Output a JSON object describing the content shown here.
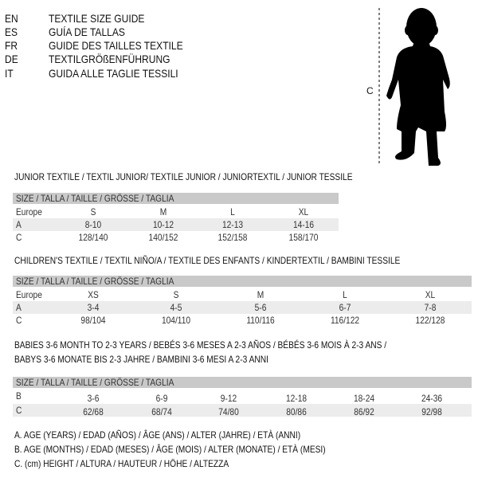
{
  "languages": [
    {
      "code": "EN",
      "text": "TEXTILE SIZE GUIDE"
    },
    {
      "code": "ES",
      "text": "GUÍA DE TALLAS"
    },
    {
      "code": "FR",
      "text": "GUIDE DES TAILLES TEXTILE"
    },
    {
      "code": "DE",
      "text": "TEXTILGRÖßENFÜHRUNG"
    },
    {
      "code": "IT",
      "text": "GUIDA ALLE TAGLIE TESSILI"
    }
  ],
  "figure": {
    "height_label": "C",
    "icon": "child-silhouette"
  },
  "junior": {
    "title": "JUNIOR TEXTILE / TEXTIL JUNIOR/ TEXTILE JUNIOR / JUNIORTEXTIL / JUNIOR TESSILE",
    "header": "SIZE / TALLA / TAILLE / GRÖSSE / TAGLIA",
    "rows": [
      {
        "label": "Europe",
        "cells": [
          "S",
          "M",
          "L",
          "XL"
        ]
      },
      {
        "label": "A",
        "cells": [
          "8-10",
          "10-12",
          "12-13",
          "14-16"
        ]
      },
      {
        "label": "C",
        "cells": [
          "128/140",
          "140/152",
          "152/158",
          "158/170"
        ]
      }
    ]
  },
  "children": {
    "title": "CHILDREN'S TEXTILE / TEXTIL NIÑO/A / TEXTILE DES ENFANTS / KINDERTEXTIL / BAMBINI TESSILE",
    "header": "SIZE / TALLA / TAILLE / GRÖSSE / TAGLIA",
    "rows": [
      {
        "label": "Europe",
        "cells": [
          "XS",
          "S",
          "M",
          "L",
          "XL"
        ]
      },
      {
        "label": "A",
        "cells": [
          "3-4",
          "4-5",
          "5-6",
          "6-7",
          "7-8"
        ]
      },
      {
        "label": "C",
        "cells": [
          "98/104",
          "104/110",
          "110/116",
          "116/122",
          "122/128"
        ]
      }
    ]
  },
  "babies": {
    "title_line1": "BABIES 3-6 MONTH TO 2-3 YEARS / BEBÉS 3-6 MESES A 2-3 AÑOS / BÉBÉS 3-6 MOIS À 2-3 ANS /",
    "title_line2": "BABYS 3-6 MONATE BIS 2-3 JAHRE / BAMBINI 3-6 MESI A 2-3 ANNI",
    "header": "SIZE / TALLA / TAILLE / GRÖSSE / TAGLIA",
    "rows": [
      {
        "label": "B",
        "cells": [
          "3-6",
          "6-9",
          "9-12",
          "12-18",
          "18-24",
          "24-36"
        ]
      },
      {
        "label": "C",
        "cells": [
          "62/68",
          "68/74",
          "74/80",
          "80/86",
          "86/92",
          "92/98"
        ]
      }
    ]
  },
  "legend": [
    "A. AGE (YEARS) / EDAD (AÑOS) / ÂGE (ANS) / ALTER (JAHRE) / ETÀ (ANNI)",
    "B. AGE (MONTHS) / EDAD (MESES) / ÂGE (MOIS) / ALTER (MONATE) / ETÀ (MESI)",
    "C. (cm) HEIGHT / ALTURA / HAUTEUR / HÖHE / ALTEZZA"
  ]
}
